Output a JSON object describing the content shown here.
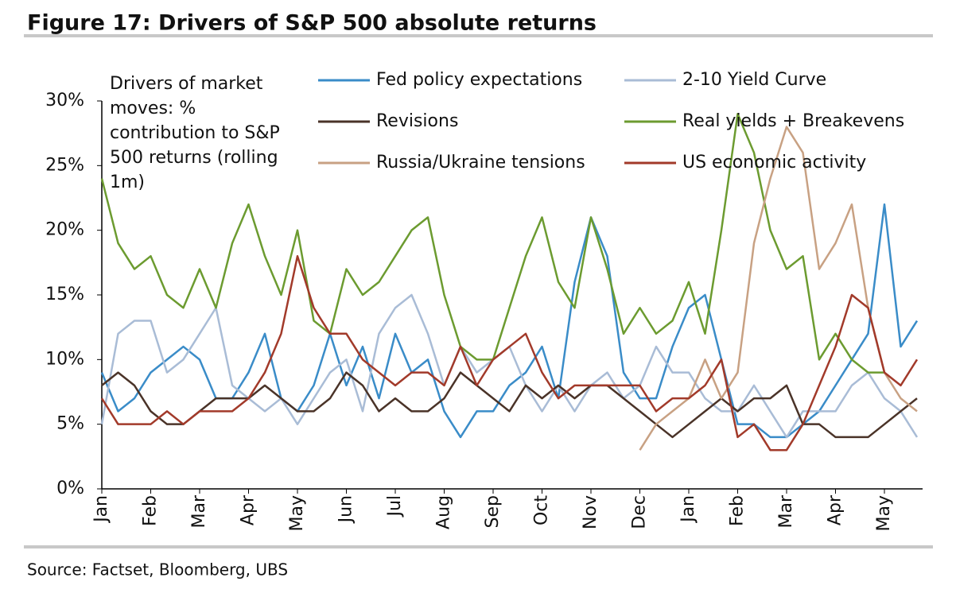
{
  "chart_data": {
    "type": "line",
    "title": "Figure 17: Drivers of S&P 500 absolute returns",
    "annotation": "Drivers of market moves:  % contribution to S&P 500 returns (rolling 1m)",
    "source": "Source: Factset, Bloomberg, UBS",
    "categories": [
      "Jan",
      null,
      null,
      "Feb",
      null,
      null,
      "Mar",
      null,
      null,
      "Apr",
      null,
      null,
      "May",
      null,
      null,
      "Jun",
      null,
      null,
      "Jul",
      null,
      null,
      "Aug",
      null,
      null,
      "Sep",
      null,
      null,
      "Oct",
      null,
      null,
      "Nov",
      null,
      null,
      "Dec",
      null,
      null,
      "Jan",
      null,
      null,
      "Feb",
      null,
      null,
      "Mar",
      null,
      null,
      "Apr",
      null,
      null,
      "May",
      null,
      null
    ],
    "ylim": [
      0,
      30
    ],
    "yticks": [
      {
        "value": 0,
        "label": "0%"
      },
      {
        "value": 5,
        "label": "5%"
      },
      {
        "value": 10,
        "label": "10%"
      },
      {
        "value": 15,
        "label": "15%"
      },
      {
        "value": 20,
        "label": "20%"
      },
      {
        "value": 25,
        "label": "25%"
      },
      {
        "value": 30,
        "label": "30%"
      }
    ],
    "series": [
      {
        "name": "Fed policy expectations",
        "color": "#3a8cc8",
        "values": [
          9,
          6,
          7,
          9,
          10,
          11,
          10,
          7,
          7,
          9,
          12,
          7,
          6,
          8,
          12,
          8,
          11,
          7,
          12,
          9,
          10,
          6,
          4,
          6,
          6,
          8,
          9,
          11,
          7,
          16,
          21,
          18,
          9,
          7,
          7,
          11,
          14,
          15,
          10,
          5,
          5,
          4,
          4,
          5,
          6,
          8,
          10,
          12,
          22,
          11,
          13
        ]
      },
      {
        "name": "2-10 Yield Curve",
        "color": "#a9bcd6",
        "values": [
          5,
          12,
          13,
          13,
          9,
          10,
          12,
          14,
          8,
          7,
          6,
          7,
          5,
          7,
          9,
          10,
          6,
          12,
          14,
          15,
          12,
          8,
          11,
          9,
          10,
          11,
          8,
          6,
          8,
          6,
          8,
          9,
          7,
          8,
          11,
          9,
          9,
          7,
          6,
          6,
          8,
          6,
          4,
          6,
          6,
          6,
          8,
          9,
          7,
          6,
          4
        ]
      },
      {
        "name": "Revisions",
        "color": "#4a3328",
        "values": [
          8,
          9,
          8,
          6,
          5,
          5,
          6,
          7,
          7,
          7,
          8,
          7,
          6,
          6,
          7,
          9,
          8,
          6,
          7,
          6,
          6,
          7,
          9,
          8,
          7,
          6,
          8,
          7,
          8,
          7,
          8,
          8,
          7,
          6,
          5,
          4,
          5,
          6,
          7,
          6,
          7,
          7,
          8,
          5,
          5,
          4,
          4,
          4,
          5,
          6,
          7
        ]
      },
      {
        "name": "Real yields + Breakevens",
        "color": "#6c9b30",
        "values": [
          24,
          19,
          17,
          18,
          15,
          14,
          17,
          14,
          19,
          22,
          18,
          15,
          20,
          13,
          12,
          17,
          15,
          16,
          18,
          20,
          21,
          15,
          11,
          10,
          10,
          14,
          18,
          21,
          16,
          14,
          21,
          17,
          12,
          14,
          12,
          13,
          16,
          12,
          20,
          29,
          26,
          20,
          17,
          18,
          10,
          12,
          10,
          9,
          9,
          null,
          null
        ]
      },
      {
        "name": "Russia/Ukraine tensions",
        "color": "#c8a183",
        "values": [
          null,
          null,
          null,
          null,
          null,
          null,
          null,
          null,
          null,
          null,
          null,
          null,
          null,
          null,
          null,
          null,
          null,
          null,
          null,
          null,
          null,
          null,
          null,
          null,
          null,
          null,
          null,
          null,
          null,
          null,
          null,
          null,
          null,
          3,
          5,
          6,
          7,
          10,
          7,
          9,
          19,
          24,
          28,
          26,
          17,
          19,
          22,
          14,
          9,
          7,
          6
        ]
      },
      {
        "name": "US economic activity",
        "color": "#a23a2a",
        "values": [
          7,
          5,
          5,
          5,
          6,
          5,
          6,
          6,
          6,
          7,
          9,
          12,
          18,
          14,
          12,
          12,
          10,
          9,
          8,
          9,
          9,
          8,
          11,
          8,
          10,
          11,
          12,
          9,
          7,
          8,
          8,
          8,
          8,
          8,
          6,
          7,
          7,
          8,
          10,
          4,
          5,
          3,
          3,
          5,
          8,
          11,
          15,
          14,
          9,
          8,
          10
        ]
      }
    ]
  }
}
